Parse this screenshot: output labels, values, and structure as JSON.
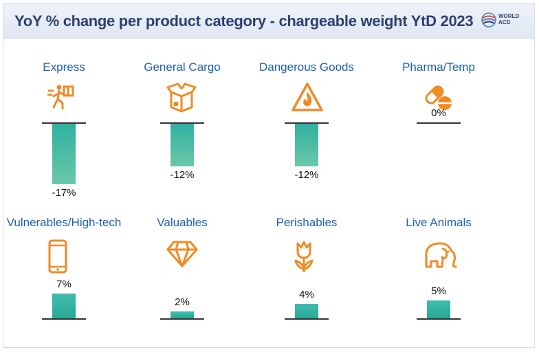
{
  "title": "YoY % change per product category - chargeable weight YtD 2023",
  "logo": {
    "line1": "WORLD",
    "line2": "ACD"
  },
  "colors": {
    "bar": "#2ab3a2",
    "icon": "#f08a24",
    "label": "#1f5fb0",
    "title": "#2e3f73"
  },
  "chart_data": {
    "type": "bar",
    "title": "YoY % change per product category - chargeable weight YtD 2023",
    "unit": "%",
    "categories": [
      "Express",
      "General Cargo",
      "Dangerous Goods",
      "Pharma/Temp",
      "Vulnerables/High-tech",
      "Valuables",
      "Perishables",
      "Live Animals"
    ],
    "values": [
      -17,
      -12,
      -12,
      0,
      7,
      2,
      4,
      5
    ],
    "labels": [
      "-17%",
      "-12%",
      "-12%",
      "0%",
      "7%",
      "2%",
      "4%",
      "5%"
    ],
    "icons": [
      "express-runner-icon",
      "package-box-icon",
      "flame-warning-icon",
      "pill-capsule-icon",
      "smartphone-icon",
      "diamond-icon",
      "tulip-icon",
      "elephant-icon"
    ]
  }
}
